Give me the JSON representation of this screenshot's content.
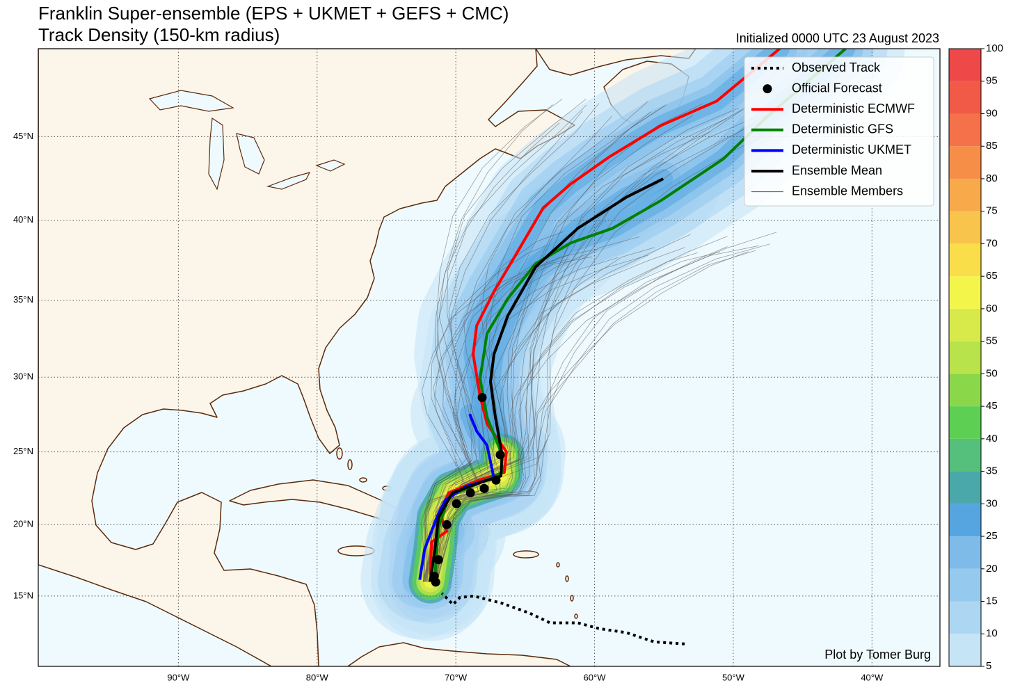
{
  "header": {
    "title": "Franklin Super-ensemble (EPS + UKMET + GEFS + CMC)",
    "subtitle": "Track Density (150-km radius)",
    "initialized": "Initialized 0000 UTC 23 August 2023"
  },
  "credit": "Plot by Tomer Burg",
  "map": {
    "projection": "miller",
    "lonlim": [
      -100.1,
      -35.1
    ],
    "latlim": [
      10,
      50
    ],
    "grid": true,
    "legend": "upper right",
    "lonticks": [
      {
        "value": -90,
        "label": "90°W"
      },
      {
        "value": -80,
        "label": "80°W"
      },
      {
        "value": -70,
        "label": "70°W"
      },
      {
        "value": -60,
        "label": "60°W"
      },
      {
        "value": -50,
        "label": "50°W"
      },
      {
        "value": -40,
        "label": "40°W"
      }
    ],
    "latticks": [
      {
        "value": 15,
        "label": "15°N"
      },
      {
        "value": 20,
        "label": "20°N"
      },
      {
        "value": 25,
        "label": "25°N"
      },
      {
        "value": 30,
        "label": "30°N"
      },
      {
        "value": 35,
        "label": "35°N"
      },
      {
        "value": 40,
        "label": "40°N"
      },
      {
        "value": 45,
        "label": "45°N"
      }
    ]
  },
  "tracks": [
    {
      "name": "Observed Track",
      "color": "#000000",
      "linestyle": "dotted",
      "lon": [
        -53.5,
        -55.7,
        -57.7,
        -59.7,
        -61.2,
        -63.2,
        -64.7,
        -66.7,
        -68.7,
        -69.7,
        -70.2,
        -71.0
      ],
      "lat": [
        11.6,
        11.75,
        12.4,
        12.7,
        13.1,
        13.1,
        13.8,
        14.5,
        15.0,
        14.9,
        14.4,
        15.2
      ]
    },
    {
      "name": "Official Forecast",
      "color": "#000000",
      "linestyle": "markers",
      "lon": [
        -71.45,
        -71.55,
        -71.25,
        -70.65,
        -69.95,
        -68.95,
        -67.95,
        -67.1,
        -66.8,
        -68.1
      ],
      "lat": [
        15.98,
        16.4,
        17.55,
        20.0,
        21.45,
        22.2,
        22.5,
        23.07,
        24.8,
        28.65
      ]
    },
    {
      "name": "Deterministic ECMWF",
      "color": "#ff0000",
      "linestyle": "solid",
      "lon": [
        -71.85,
        -71.75,
        -71.0,
        -70.65,
        -71.15,
        -70.5,
        -68.25,
        -66.5,
        -66.35,
        -67.75,
        -68.25,
        -68.75,
        -68.5,
        -67.25,
        -65.75,
        -63.7,
        -61.7,
        -58.95,
        -55.2,
        -51.2,
        -46.65
      ],
      "lat": [
        16.5,
        18.8,
        19.3,
        19.55,
        20.75,
        22.2,
        23.1,
        23.6,
        25.0,
        26.9,
        28.75,
        31.5,
        33.35,
        35.55,
        37.75,
        40.75,
        42.2,
        43.8,
        45.65,
        47.05,
        50.0
      ]
    },
    {
      "name": "Deterministic GFS",
      "color": "#008000",
      "linestyle": "solid",
      "lon": [
        -71.5,
        -71.25,
        -70.5,
        -68.25,
        -66.65,
        -66.75,
        -67.75,
        -68.25,
        -67.75,
        -66.25,
        -64.25,
        -61.7,
        -58.7,
        -55.2,
        -50.7,
        -47.7,
        -41.9
      ],
      "lat": [
        16.4,
        19.8,
        21.95,
        22.9,
        23.6,
        25.0,
        27.35,
        29.9,
        32.85,
        35.1,
        37.3,
        38.6,
        39.5,
        41.2,
        43.7,
        46.05,
        50.0
      ]
    },
    {
      "name": "Deterministic UKMET",
      "color": "#0000ff",
      "linestyle": "solid",
      "lon": [
        -72.6,
        -72.25,
        -71.75,
        -71.25,
        -70.75,
        -69.25,
        -67.25,
        -67.75,
        -68.5,
        -69.0
      ],
      "lat": [
        16.15,
        18.3,
        19.55,
        20.75,
        21.7,
        22.65,
        23.2,
        25.45,
        26.4,
        27.55
      ]
    },
    {
      "name": "Ensemble Mean",
      "color": "#000000",
      "linestyle": "solid",
      "lon": [
        -71.85,
        -71.5,
        -71.25,
        -70.25,
        -68.25,
        -66.75,
        -66.65,
        -67.15,
        -67.5,
        -67.25,
        -66.25,
        -64.25,
        -61.2,
        -57.7,
        -55.05
      ],
      "lat": [
        16.0,
        18.3,
        20.5,
        22.2,
        22.9,
        23.35,
        24.75,
        27.35,
        29.7,
        31.5,
        34.0,
        37.1,
        39.5,
        41.4,
        42.5
      ]
    },
    {
      "name": "Ensemble Members",
      "color": "#555555",
      "linestyle": "thin"
    }
  ],
  "colorbar": {
    "ticks": [
      5,
      10,
      15,
      20,
      25,
      30,
      35,
      40,
      45,
      50,
      55,
      60,
      65,
      70,
      75,
      80,
      85,
      90,
      95,
      100
    ],
    "colors": [
      "#c5e4f6",
      "#add6f2",
      "#96c9ee",
      "#7ebbe9",
      "#56a5e0",
      "#4aa8aa",
      "#55bf7c",
      "#5dcf52",
      "#8ad84a",
      "#b8e34a",
      "#d8ea4a",
      "#f4f54a",
      "#f9de4a",
      "#f9c44c",
      "#f8aa4a",
      "#f78e48",
      "#f5714a",
      "#f25a48",
      "#ef4848"
    ]
  }
}
